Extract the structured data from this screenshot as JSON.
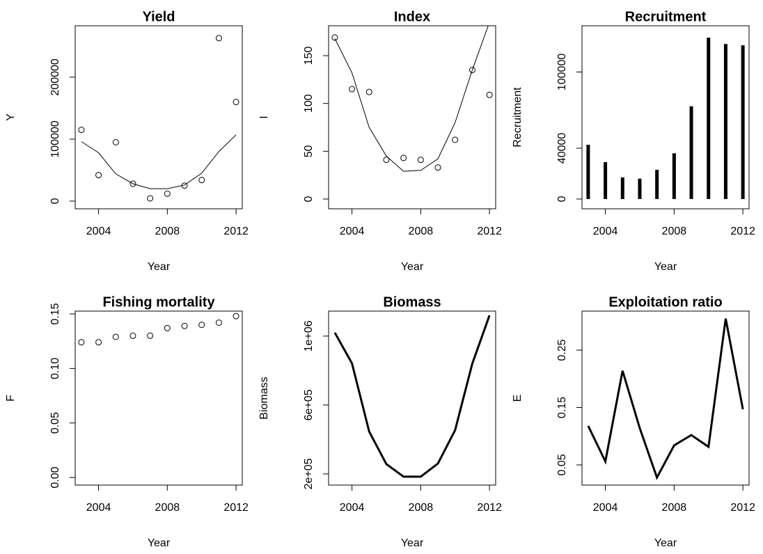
{
  "chart_data": [
    {
      "type": "scatter",
      "title": "Yield",
      "xlabel": "Year",
      "ylabel": "Y",
      "x": [
        2003,
        2004,
        2005,
        2006,
        2007,
        2008,
        2009,
        2010,
        2011,
        2012
      ],
      "values": [
        115000,
        42000,
        95000,
        28000,
        4500,
        12000,
        25000,
        34000,
        263000,
        160000
      ],
      "fitted_values": [
        96000,
        78000,
        44000,
        28000,
        20000,
        20000,
        26000,
        45000,
        80000,
        107000
      ],
      "xlim": [
        2002.64,
        2012.36
      ],
      "xticks": [
        2004,
        2008,
        2012
      ],
      "ylim": [
        -12400,
        283000
      ],
      "yticks": [
        0,
        100000,
        200000
      ],
      "color": "#000000"
    },
    {
      "type": "scatter",
      "title": "Index",
      "xlabel": "Year",
      "ylabel": "I",
      "x": [
        2003,
        2004,
        2005,
        2006,
        2007,
        2008,
        2009,
        2010,
        2011,
        2012
      ],
      "values": [
        169,
        115,
        112,
        41,
        43,
        41,
        33,
        62,
        135,
        109
      ],
      "fitted_values": [
        168,
        132,
        75,
        45,
        29,
        30,
        42,
        80,
        135,
        185
      ],
      "xlim": [
        2002.64,
        2012.36
      ],
      "xticks": [
        2004,
        2008,
        2012
      ],
      "ylim": [
        -10.2,
        181.3
      ],
      "yticks": [
        0,
        50,
        100,
        150
      ],
      "color": "#000000"
    },
    {
      "type": "bar",
      "title": "Recruitment",
      "xlabel": "Year",
      "ylabel": "Recruitment",
      "x": [
        2003,
        2004,
        2005,
        2006,
        2007,
        2008,
        2009,
        2010,
        2011,
        2012
      ],
      "values": [
        42700,
        29000,
        17000,
        16000,
        23000,
        36000,
        73000,
        127000,
        122000,
        121000
      ],
      "xlim": [
        2002.64,
        2012.36
      ],
      "xticks": [
        2004,
        2008,
        2012
      ],
      "ylim": [
        -7700,
        136400
      ],
      "yticks": [
        0,
        40000,
        100000
      ],
      "color": "#000000"
    },
    {
      "type": "scatter",
      "title": "Fishing mortality",
      "xlabel": "Year",
      "ylabel": "F",
      "x": [
        2003,
        2004,
        2005,
        2006,
        2007,
        2008,
        2009,
        2010,
        2011,
        2012
      ],
      "values": [
        0.124,
        0.124,
        0.129,
        0.13,
        0.13,
        0.137,
        0.139,
        0.14,
        0.142,
        0.148
      ],
      "xlim": [
        2002.64,
        2012.36
      ],
      "xticks": [
        2004,
        2008,
        2012
      ],
      "ylim": [
        -0.007,
        0.1526
      ],
      "yticks": [
        {
          "value": 0,
          "label": "0.00"
        },
        0.05,
        {
          "value": 0.1,
          "label": "0.10"
        },
        0.15
      ],
      "color": "#000000"
    },
    {
      "type": "line",
      "title": "Biomass",
      "xlabel": "Year",
      "ylabel": "Biomass",
      "x": [
        2003,
        2004,
        2005,
        2006,
        2007,
        2008,
        2009,
        2010,
        2011,
        2012
      ],
      "values": [
        1020000,
        842000,
        446000,
        257000,
        184000,
        184000,
        260000,
        454000,
        840000,
        1120000
      ],
      "xlim": [
        2002.64,
        2012.36
      ],
      "xticks": [
        2004,
        2008,
        2012
      ],
      "ylim": [
        135000,
        1145000
      ],
      "yticks": [
        {
          "value": 200000,
          "label": "2e+05"
        },
        {
          "value": 600000,
          "label": "6e+05"
        },
        {
          "value": 1000000,
          "label": "1e+06"
        }
      ],
      "color": "#000000"
    },
    {
      "type": "line",
      "title": "Exploitation ratio",
      "xlabel": "Year",
      "ylabel": "E",
      "x": [
        2003,
        2004,
        2005,
        2006,
        2007,
        2008,
        2009,
        2010,
        2011,
        2012
      ],
      "values": [
        0.118,
        0.056,
        0.214,
        0.114,
        0.028,
        0.084,
        0.102,
        0.0815,
        0.305,
        0.147
      ],
      "xlim": [
        2002.64,
        2012.36
      ],
      "xticks": [
        2004,
        2008,
        2012
      ],
      "ylim": [
        0.0148,
        0.318
      ],
      "yticks": [
        0.05,
        0.15,
        0.25
      ],
      "color": "#000000"
    }
  ]
}
